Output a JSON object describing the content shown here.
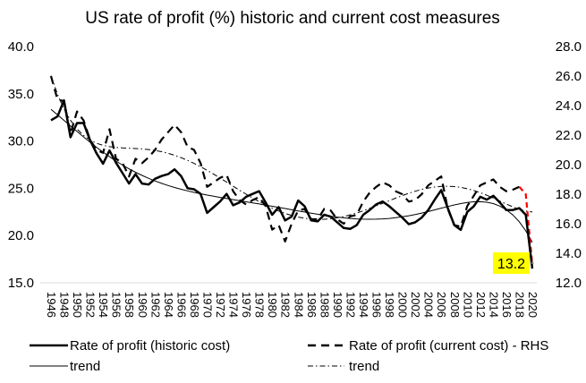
{
  "chart_data": {
    "type": "line",
    "title": "US rate of profit (%) historic and current cost measures",
    "x": [
      1946,
      1947,
      1948,
      1949,
      1950,
      1951,
      1952,
      1953,
      1954,
      1955,
      1956,
      1957,
      1958,
      1959,
      1960,
      1961,
      1962,
      1963,
      1964,
      1965,
      1966,
      1967,
      1968,
      1969,
      1970,
      1971,
      1972,
      1973,
      1974,
      1975,
      1976,
      1977,
      1978,
      1979,
      1980,
      1981,
      1982,
      1983,
      1984,
      1985,
      1986,
      1987,
      1988,
      1989,
      1990,
      1991,
      1992,
      1993,
      1994,
      1995,
      1996,
      1997,
      1998,
      1999,
      2000,
      2001,
      2002,
      2003,
      2004,
      2005,
      2006,
      2007,
      2008,
      2009,
      2010,
      2011,
      2012,
      2013,
      2014,
      2015,
      2016,
      2017,
      2018,
      2019,
      2020
    ],
    "x_tick_labels": [
      "1946",
      "1948",
      "1950",
      "1952",
      "1954",
      "1956",
      "1958",
      "1960",
      "1962",
      "1964",
      "1966",
      "1968",
      "1970",
      "1972",
      "1974",
      "1976",
      "1978",
      "1980",
      "1982",
      "1984",
      "1986",
      "1988",
      "1990",
      "1992",
      "1994",
      "1996",
      "1998",
      "2000",
      "2002",
      "2004",
      "2006",
      "2008",
      "2010",
      "2012",
      "2014",
      "2016",
      "2018",
      "2020"
    ],
    "y_left": {
      "range": [
        15,
        40
      ],
      "ticks": [
        "15.0",
        "20.0",
        "25.0",
        "30.0",
        "35.0",
        "40.0"
      ]
    },
    "y_right": {
      "range": [
        12,
        28
      ],
      "ticks": [
        "12.0",
        "14.0",
        "16.0",
        "18.0",
        "20.0",
        "22.0",
        "24.0",
        "26.0",
        "28.0"
      ]
    },
    "grid": false,
    "legend_position": "bottom",
    "series": [
      {
        "name": "Rate of profit (historic cost)",
        "axis": "left",
        "style": "solid-bold",
        "values": [
          32.2,
          32.6,
          34.3,
          30.4,
          31.9,
          31.9,
          30.1,
          28.7,
          27.6,
          29.0,
          27.7,
          26.6,
          25.5,
          26.5,
          25.5,
          25.4,
          26.0,
          26.3,
          26.5,
          27.0,
          26.3,
          25.0,
          24.9,
          24.4,
          22.4,
          23.0,
          23.6,
          24.4,
          23.2,
          23.5,
          24.1,
          24.4,
          24.7,
          23.5,
          22.2,
          23.0,
          21.6,
          22.0,
          23.7,
          23.1,
          21.6,
          21.5,
          22.2,
          22.0,
          21.4,
          20.8,
          20.7,
          21.1,
          22.2,
          22.7,
          23.3,
          23.6,
          23.1,
          22.5,
          21.9,
          21.2,
          21.4,
          21.9,
          22.7,
          23.8,
          24.8,
          22.9,
          21.1,
          20.6,
          22.5,
          23.1,
          24.1,
          23.8,
          24.2,
          23.5,
          22.7,
          22.7,
          22.9,
          22.2,
          16.5
        ]
      },
      {
        "name": "Rate of profit (current cost) - RHS",
        "axis": "right",
        "style": "dashed",
        "values": [
          26.0,
          24.4,
          24.3,
          22.1,
          23.6,
          23.0,
          21.7,
          21.0,
          20.8,
          22.4,
          20.4,
          20.1,
          19.2,
          20.4,
          20.1,
          20.5,
          21.0,
          21.7,
          22.2,
          22.7,
          22.2,
          21.2,
          21.0,
          20.1,
          18.5,
          18.8,
          19.1,
          19.3,
          18.2,
          17.6,
          17.3,
          17.6,
          17.8,
          17.2,
          15.6,
          15.9,
          14.8,
          16.0,
          16.9,
          17.0,
          16.3,
          16.3,
          17.0,
          16.9,
          16.3,
          16.0,
          16.5,
          16.6,
          17.5,
          18.1,
          18.5,
          18.8,
          18.6,
          18.2,
          18.0,
          17.5,
          17.6,
          18.0,
          18.6,
          18.9,
          19.2,
          17.0,
          15.9,
          15.8,
          17.2,
          17.9,
          18.6,
          18.8,
          19.0,
          18.5,
          18.2,
          18.3,
          18.5,
          18.0,
          13.2
        ]
      },
      {
        "name": "trend",
        "axis": "left",
        "style": "solid-thin",
        "trend_of": 0
      },
      {
        "name": "trend",
        "axis": "right",
        "style": "dash-dot",
        "trend_of": 1
      }
    ],
    "highlight_color": "#ff0000",
    "annotation": {
      "text": "13.2",
      "x": 2020,
      "background": "#ffff00"
    }
  }
}
